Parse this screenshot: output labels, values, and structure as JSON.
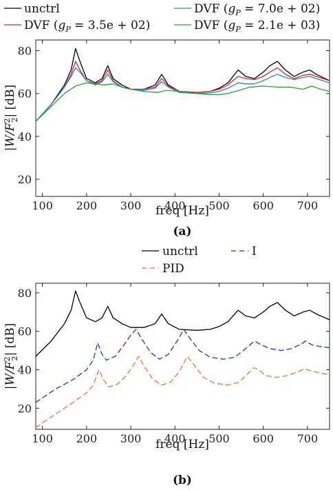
{
  "chart_data": [
    {
      "type": "line",
      "caption": "(a)",
      "xlabel": "freq [Hz]",
      "ylabel": "|W/F₂²| [dB]",
      "xlim": [
        85,
        750
      ],
      "ylim": [
        12,
        85
      ],
      "xticks": [
        100,
        200,
        300,
        400,
        500,
        600,
        700
      ],
      "yticks": [
        20,
        40,
        60,
        80
      ],
      "legend_position": "top (outside plot)",
      "series": [
        {
          "name": "unctrl",
          "color": "#000000",
          "dash": "solid",
          "x": [
            85,
            120,
            150,
            165,
            175,
            185,
            200,
            220,
            235,
            248,
            260,
            280,
            300,
            330,
            355,
            370,
            385,
            410,
            450,
            480,
            500,
            520,
            543,
            560,
            580,
            600,
            615,
            632,
            650,
            670,
            690,
            705,
            720,
            750
          ],
          "y": [
            47,
            55,
            64,
            71,
            81,
            75,
            67,
            65,
            67,
            73,
            67,
            64,
            62,
            62,
            64,
            69,
            64,
            61,
            60.5,
            61,
            62.5,
            65,
            71,
            68,
            67,
            70,
            73,
            75,
            71,
            68,
            70,
            71,
            69,
            66
          ]
        },
        {
          "name": "DVF (g_P = 3.5e+02)",
          "color": "#d62728",
          "dash": "solid",
          "x": [
            85,
            120,
            150,
            165,
            175,
            185,
            200,
            220,
            235,
            248,
            260,
            280,
            300,
            330,
            355,
            370,
            385,
            410,
            450,
            480,
            500,
            520,
            543,
            560,
            580,
            600,
            615,
            632,
            650,
            670,
            690,
            705,
            720,
            750
          ],
          "y": [
            47,
            55,
            63,
            69,
            75,
            71,
            66,
            64.5,
            66,
            71,
            66,
            63,
            62,
            62,
            63,
            67,
            63.5,
            61,
            60.5,
            61,
            62,
            64,
            68,
            67,
            66.5,
            68,
            70,
            72,
            69,
            67,
            68.5,
            69,
            68,
            66
          ]
        },
        {
          "name": "DVF (g_P = 7.0e+02)",
          "color": "#1f8ad0",
          "dash": "solid",
          "x": [
            85,
            120,
            150,
            165,
            175,
            185,
            200,
            220,
            235,
            248,
            260,
            280,
            300,
            330,
            355,
            370,
            385,
            410,
            450,
            480,
            500,
            520,
            543,
            560,
            580,
            600,
            615,
            632,
            650,
            670,
            690,
            705,
            720,
            750
          ],
          "y": [
            47,
            55,
            63,
            68,
            72,
            70,
            66,
            64,
            65.5,
            69,
            65.5,
            63,
            62,
            61.5,
            62.5,
            65.5,
            63,
            60.5,
            60,
            60.3,
            61,
            62.5,
            65,
            64.5,
            64.5,
            66,
            67.5,
            69,
            67.5,
            66.5,
            67.5,
            68,
            67,
            65
          ]
        },
        {
          "name": "DVF (g_P = 2.1e+03)",
          "color": "#2ca02c",
          "dash": "solid",
          "x": [
            85,
            120,
            150,
            175,
            200,
            220,
            240,
            260,
            280,
            300,
            330,
            360,
            380,
            410,
            450,
            480,
            500,
            520,
            545,
            570,
            600,
            630,
            660,
            690,
            710,
            730,
            750
          ],
          "y": [
            47,
            54,
            60,
            63.5,
            65,
            64.5,
            64,
            64.5,
            63,
            62,
            61,
            60.5,
            61.5,
            61,
            60,
            59.5,
            59.5,
            60,
            61.5,
            63,
            63.5,
            63,
            63,
            62,
            63.5,
            62,
            61
          ]
        }
      ]
    },
    {
      "type": "line",
      "caption": "(b)",
      "xlabel": "freq [Hz]",
      "ylabel": "|W/F₂²| [dB]",
      "xlim": [
        85,
        750
      ],
      "ylim": [
        9,
        85
      ],
      "xticks": [
        100,
        200,
        300,
        400,
        500,
        600,
        700
      ],
      "yticks": [
        20,
        40,
        60,
        80
      ],
      "legend_position": "top (outside plot)",
      "series": [
        {
          "name": "unctrl",
          "color": "#000000",
          "dash": "solid",
          "x": [
            85,
            120,
            150,
            165,
            175,
            185,
            200,
            220,
            235,
            248,
            260,
            280,
            300,
            330,
            355,
            370,
            385,
            410,
            450,
            480,
            500,
            520,
            543,
            560,
            580,
            600,
            615,
            632,
            650,
            670,
            690,
            705,
            720,
            750
          ],
          "y": [
            47,
            55,
            64,
            71,
            81,
            75,
            67,
            65,
            67,
            73,
            67,
            64,
            62,
            62,
            64,
            69,
            64,
            61,
            60.5,
            61,
            62.5,
            65,
            71,
            68,
            67,
            70,
            73,
            75,
            71,
            68,
            70,
            71,
            69,
            66
          ]
        },
        {
          "name": "I",
          "color": "#1f2fd6",
          "dash": "dashed",
          "x": [
            85,
            130,
            170,
            200,
            215,
            225,
            235,
            245,
            265,
            285,
            300,
            312,
            325,
            345,
            365,
            385,
            405,
            420,
            435,
            455,
            480,
            510,
            535,
            555,
            570,
            580,
            595,
            615,
            640,
            665,
            690,
            695,
            710,
            730,
            750
          ],
          "y": [
            23,
            30,
            35,
            40,
            45,
            54,
            48,
            45,
            47,
            53,
            58,
            61,
            56,
            49,
            45.5,
            48,
            55,
            61,
            56,
            50,
            46.5,
            45.5,
            46.5,
            50,
            53,
            55,
            53,
            51,
            50,
            51,
            54,
            55,
            53,
            52,
            51.5
          ]
        },
        {
          "name": "PID",
          "color": "#f07030",
          "dash": "dashed",
          "x": [
            85,
            130,
            170,
            200,
            215,
            228,
            238,
            250,
            270,
            290,
            305,
            318,
            330,
            350,
            370,
            390,
            410,
            428,
            445,
            465,
            490,
            520,
            545,
            565,
            578,
            590,
            605,
            630,
            655,
            680,
            692,
            700,
            715,
            735,
            750
          ],
          "y": [
            10,
            17,
            23,
            28,
            32,
            40,
            35,
            31,
            32.5,
            37,
            42,
            47,
            42,
            35,
            32,
            33.5,
            39,
            47,
            42,
            36,
            33,
            32,
            33.5,
            38,
            41,
            40,
            37,
            36,
            37,
            39,
            40.5,
            40,
            39,
            38,
            37.5
          ]
        }
      ]
    }
  ]
}
